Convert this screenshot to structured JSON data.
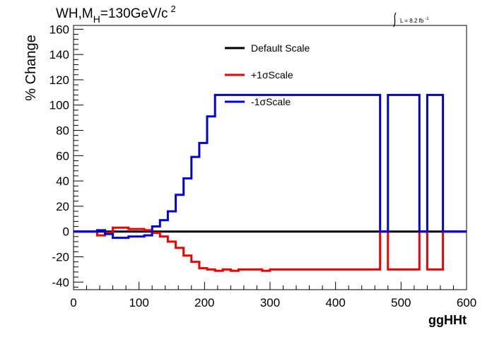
{
  "chart_data": {
    "type": "line",
    "title_main": "WH,M",
    "title_sub": "H",
    "title_tail": "=130GeV/c",
    "title_sup": "2",
    "lumi_text": "L = 8.2 fb",
    "lumi_sup": "-1",
    "xlabel": "ggHHt",
    "ylabel": "% Change",
    "xlim": [
      0,
      600
    ],
    "ylim": [
      -46,
      163
    ],
    "x_ticks": [
      0,
      100,
      200,
      300,
      400,
      500,
      600
    ],
    "y_ticks": [
      -40,
      -20,
      0,
      20,
      40,
      60,
      80,
      100,
      120,
      140,
      160
    ],
    "legend_position": "top-center",
    "series": [
      {
        "name": "Default Scale",
        "color": "#000000",
        "x": [
          0,
          600
        ],
        "y": [
          0,
          0
        ]
      },
      {
        "name": "+1σScale",
        "color": "#ee0000",
        "x": [
          0,
          36,
          36,
          48,
          48,
          60,
          60,
          72,
          72,
          84,
          84,
          96,
          96,
          108,
          108,
          120,
          120,
          132,
          132,
          144,
          144,
          156,
          156,
          168,
          168,
          180,
          180,
          192,
          192,
          204,
          204,
          216,
          216,
          228,
          228,
          240,
          240,
          252,
          252,
          264,
          264,
          276,
          276,
          288,
          288,
          300,
          300,
          312,
          312,
          468,
          468,
          480,
          480,
          528,
          528,
          540,
          540,
          564,
          564,
          600
        ],
        "y": [
          0,
          0,
          -3,
          -3,
          -1,
          -1,
          3,
          3,
          3,
          3,
          2,
          2,
          2,
          2,
          1,
          1,
          -1,
          -1,
          -4,
          -4,
          -8,
          -8,
          -13,
          -13,
          -19,
          -19,
          -24,
          -24,
          -29,
          -29,
          -30,
          -30,
          -31,
          -31,
          -30,
          -30,
          -31,
          -31,
          -30,
          -30,
          -30,
          -30,
          -30,
          -30,
          -31,
          -31,
          -30,
          -30,
          -30,
          -30,
          0,
          0,
          -30,
          -30,
          0,
          0,
          -30,
          -30,
          0,
          0
        ]
      },
      {
        "name": "-1σScale",
        "color": "#0000dd",
        "x": [
          0,
          36,
          36,
          48,
          48,
          60,
          60,
          84,
          84,
          96,
          96,
          108,
          108,
          120,
          120,
          132,
          132,
          144,
          144,
          156,
          156,
          168,
          168,
          180,
          180,
          192,
          192,
          204,
          204,
          216,
          216,
          228,
          228,
          468,
          468,
          480,
          480,
          528,
          528,
          540,
          540,
          564,
          564,
          600
        ],
        "y": [
          0,
          0,
          1,
          1,
          -2,
          -2,
          -5,
          -5,
          -4,
          -4,
          -4,
          -4,
          -3,
          -3,
          4,
          4,
          9,
          9,
          16,
          16,
          29,
          29,
          42,
          42,
          59,
          59,
          70,
          70,
          91,
          91,
          108,
          108,
          108,
          108,
          0,
          0,
          108,
          108,
          0,
          0,
          108,
          108,
          0,
          0
        ]
      }
    ]
  }
}
